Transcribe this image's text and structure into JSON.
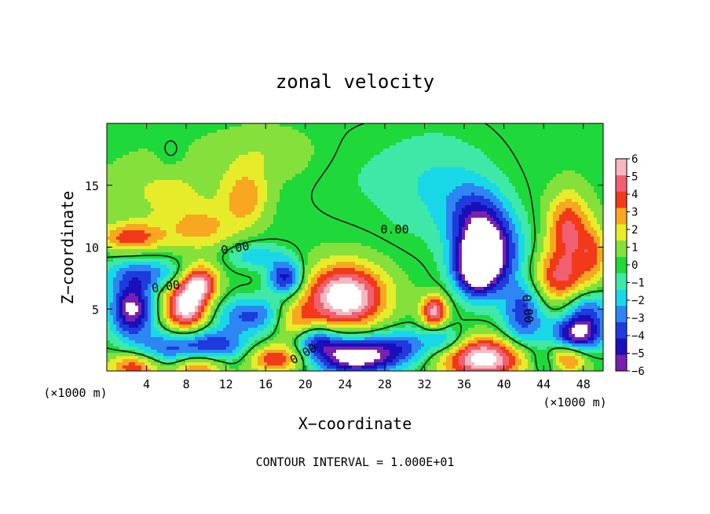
{
  "chart_data": {
    "type": "heatmap",
    "title": "zonal velocity",
    "xlabel": "X−coordinate",
    "ylabel": "Z−coordinate",
    "x_unit_label": "(×1000 m)",
    "y_unit_label": "(×1000 m)",
    "footer": "CONTOUR INTERVAL = 1.000E+01",
    "xlim": [
      0,
      50
    ],
    "ylim": [
      0,
      20
    ],
    "x_ticks": [
      4,
      8,
      12,
      16,
      20,
      24,
      28,
      32,
      36,
      40,
      44,
      48
    ],
    "x_tick_labels": [
      "4",
      "8",
      "12",
      "16",
      "20",
      "24",
      "28",
      "32",
      "36",
      "40",
      "44",
      "48"
    ],
    "y_ticks": [
      5,
      10,
      15
    ],
    "y_tick_labels": [
      "5",
      "10",
      "15"
    ],
    "contour_label": "0.00",
    "colorbar": {
      "levels": [
        -6,
        -5,
        -4,
        -3,
        -2,
        -1,
        0,
        1,
        2,
        3,
        4,
        5,
        6
      ],
      "tick_labels": [
        "−6",
        "−5",
        "−4",
        "−3",
        "−2",
        "−1",
        "0",
        "1",
        "2",
        "3",
        "4",
        "5",
        "6"
      ],
      "colors": [
        "#7a1fb0",
        "#1a0fb8",
        "#1e3bde",
        "#2d86f2",
        "#18d8e8",
        "#3fe8a6",
        "#1fd83a",
        "#86e03c",
        "#e6ec2a",
        "#f7a820",
        "#f23a1a",
        "#f06070",
        "#f6b8c0"
      ]
    },
    "background_value": 0.2,
    "features": [
      {
        "x": 2.5,
        "z": 10.8,
        "value": 4.0,
        "sx": 2.2,
        "sz": 0.8
      },
      {
        "x": 9.5,
        "z": 11.5,
        "value": 2.5,
        "sx": 2.5,
        "sz": 1.2
      },
      {
        "x": 14.0,
        "z": 14.0,
        "value": 3.0,
        "sx": 1.5,
        "sz": 1.5
      },
      {
        "x": 6.0,
        "z": 14.5,
        "value": 1.5,
        "sx": 4.0,
        "sz": 2.0
      },
      {
        "x": 16.0,
        "z": 17.5,
        "value": 1.2,
        "sx": 4.0,
        "sz": 1.5
      },
      {
        "x": 24.0,
        "z": 16.0,
        "value": -0.5,
        "sx": 3.5,
        "sz": 2.5
      },
      {
        "x": 33.0,
        "z": 15.0,
        "value": -1.8,
        "sx": 4.0,
        "sz": 3.0
      },
      {
        "x": 37.0,
        "z": 12.5,
        "value": -3.0,
        "sx": 2.0,
        "sz": 2.0
      },
      {
        "x": 38.5,
        "z": 9.8,
        "value": -6.5,
        "sx": 2.2,
        "sz": 2.2
      },
      {
        "x": 37.2,
        "z": 8.2,
        "value": -6.5,
        "sx": 1.5,
        "sz": 1.5
      },
      {
        "x": 46.5,
        "z": 11.5,
        "value": 4.5,
        "sx": 1.5,
        "sz": 2.0
      },
      {
        "x": 45.5,
        "z": 7.5,
        "value": 4.2,
        "sx": 2.0,
        "sz": 1.5
      },
      {
        "x": 49.0,
        "z": 9.5,
        "value": 3.0,
        "sx": 1.0,
        "sz": 1.5
      },
      {
        "x": 24.0,
        "z": 6.0,
        "value": 7.5,
        "sx": 2.8,
        "sz": 1.8
      },
      {
        "x": 19.0,
        "z": 4.0,
        "value": 3.0,
        "sx": 1.5,
        "sz": 1.2
      },
      {
        "x": 33.0,
        "z": 4.8,
        "value": 6.0,
        "sx": 0.9,
        "sz": 0.9
      },
      {
        "x": 8.0,
        "z": 5.2,
        "value": 7.0,
        "sx": 1.6,
        "sz": 1.6
      },
      {
        "x": 9.5,
        "z": 7.2,
        "value": 5.0,
        "sx": 1.2,
        "sz": 1.0
      },
      {
        "x": 2.5,
        "z": 5.0,
        "value": -7.0,
        "sx": 1.5,
        "sz": 1.5
      },
      {
        "x": 4.0,
        "z": 7.8,
        "value": -3.5,
        "sx": 3.0,
        "sz": 0.9
      },
      {
        "x": 14.5,
        "z": 4.5,
        "value": -4.0,
        "sx": 2.5,
        "sz": 1.0
      },
      {
        "x": 18.0,
        "z": 7.5,
        "value": -5.5,
        "sx": 1.2,
        "sz": 1.0
      },
      {
        "x": 15.0,
        "z": 9.3,
        "value": -2.5,
        "sx": 2.0,
        "sz": 0.7
      },
      {
        "x": 7.0,
        "z": 1.5,
        "value": -5.0,
        "sx": 3.0,
        "sz": 1.2
      },
      {
        "x": 11.0,
        "z": 2.0,
        "value": -3.5,
        "sx": 2.5,
        "sz": 1.0
      },
      {
        "x": 9.0,
        "z": 0.5,
        "value": 6.0,
        "sx": 2.0,
        "sz": 0.9
      },
      {
        "x": 3.0,
        "z": 0.4,
        "value": 5.0,
        "sx": 2.0,
        "sz": 0.8
      },
      {
        "x": 17.0,
        "z": 1.0,
        "value": 4.5,
        "sx": 2.0,
        "sz": 0.8
      },
      {
        "x": 25.0,
        "z": 1.2,
        "value": -8.0,
        "sx": 3.0,
        "sz": 1.1
      },
      {
        "x": 21.0,
        "z": 2.5,
        "value": -4.0,
        "sx": 1.5,
        "sz": 0.8
      },
      {
        "x": 30.0,
        "z": 2.0,
        "value": -3.0,
        "sx": 2.0,
        "sz": 1.0
      },
      {
        "x": 38.0,
        "z": 1.0,
        "value": 7.0,
        "sx": 3.0,
        "sz": 1.2
      },
      {
        "x": 42.0,
        "z": 4.5,
        "value": -4.5,
        "sx": 1.5,
        "sz": 2.0
      },
      {
        "x": 47.5,
        "z": 3.0,
        "value": -7.0,
        "sx": 1.8,
        "sz": 1.0
      },
      {
        "x": 48.5,
        "z": 5.0,
        "value": -3.5,
        "sx": 1.5,
        "sz": 1.0
      },
      {
        "x": 46.0,
        "z": 1.0,
        "value": 5.0,
        "sx": 1.5,
        "sz": 0.8
      },
      {
        "x": 44.5,
        "z": 0.8,
        "value": -3.5,
        "sx": 1.2,
        "sz": 0.8
      },
      {
        "x": 34.0,
        "z": 2.5,
        "value": -3.0,
        "sx": 1.5,
        "sz": 0.8
      },
      {
        "x": 6.5,
        "z": 17.5,
        "value": -0.8,
        "sx": 1.0,
        "sz": 1.0
      }
    ]
  }
}
